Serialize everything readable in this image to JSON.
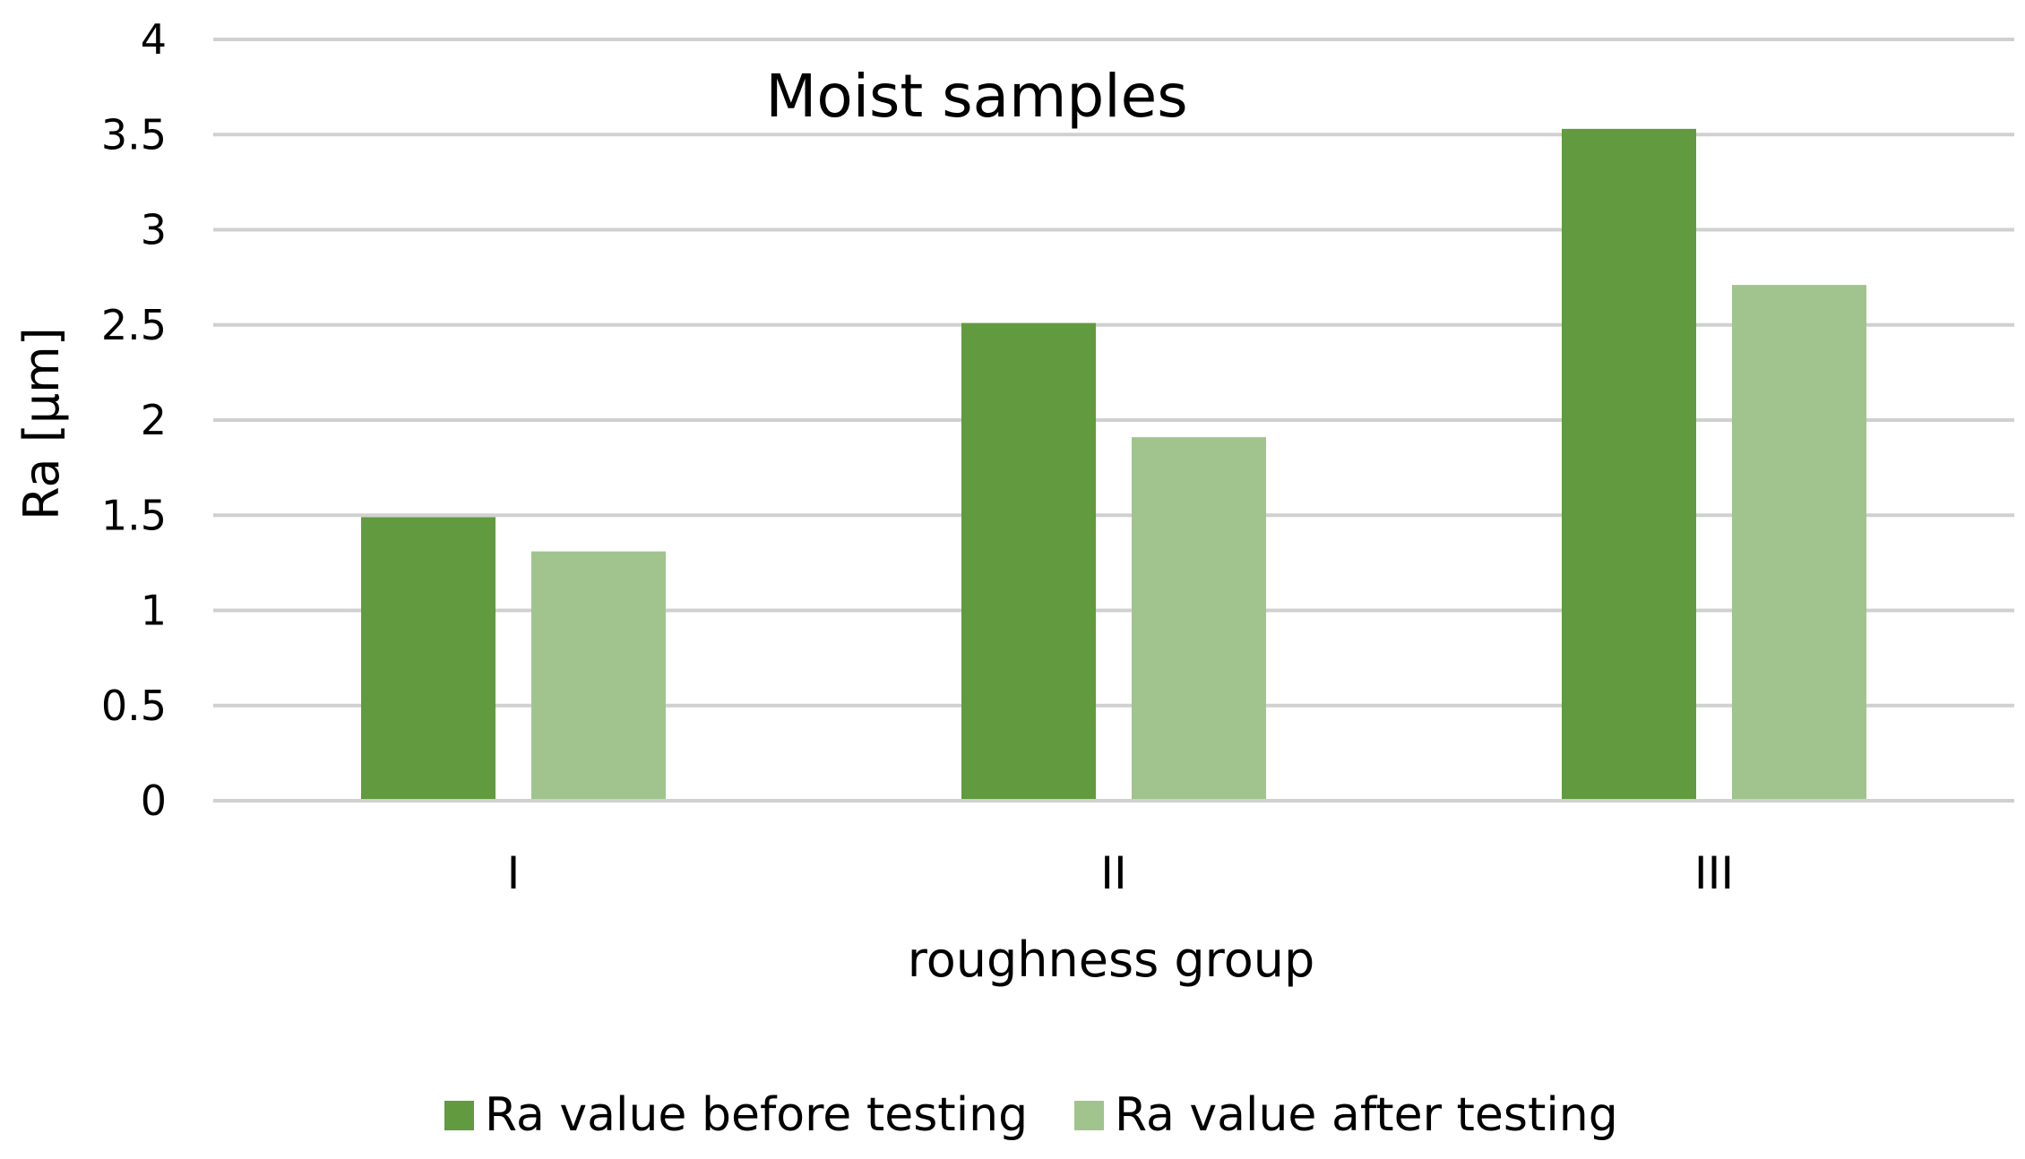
{
  "chart_data": {
    "type": "bar",
    "title": "Moist samples",
    "xlabel": "roughness group",
    "ylabel": "Ra [µm]",
    "categories": [
      "I",
      "II",
      "III"
    ],
    "ylim": [
      0,
      4
    ],
    "yticks": [
      "0",
      "0.5",
      "1",
      "1.5",
      "2",
      "2.5",
      "3",
      "3.5",
      "4"
    ],
    "grid": true,
    "legend_position": "bottom",
    "series": [
      {
        "name": "Ra value before testing",
        "color": "#629A3F",
        "values": [
          1.49,
          2.51,
          3.53
        ]
      },
      {
        "name": "Ra value after testing",
        "color": "#A1C48E",
        "values": [
          1.31,
          1.91,
          2.71
        ]
      }
    ]
  }
}
